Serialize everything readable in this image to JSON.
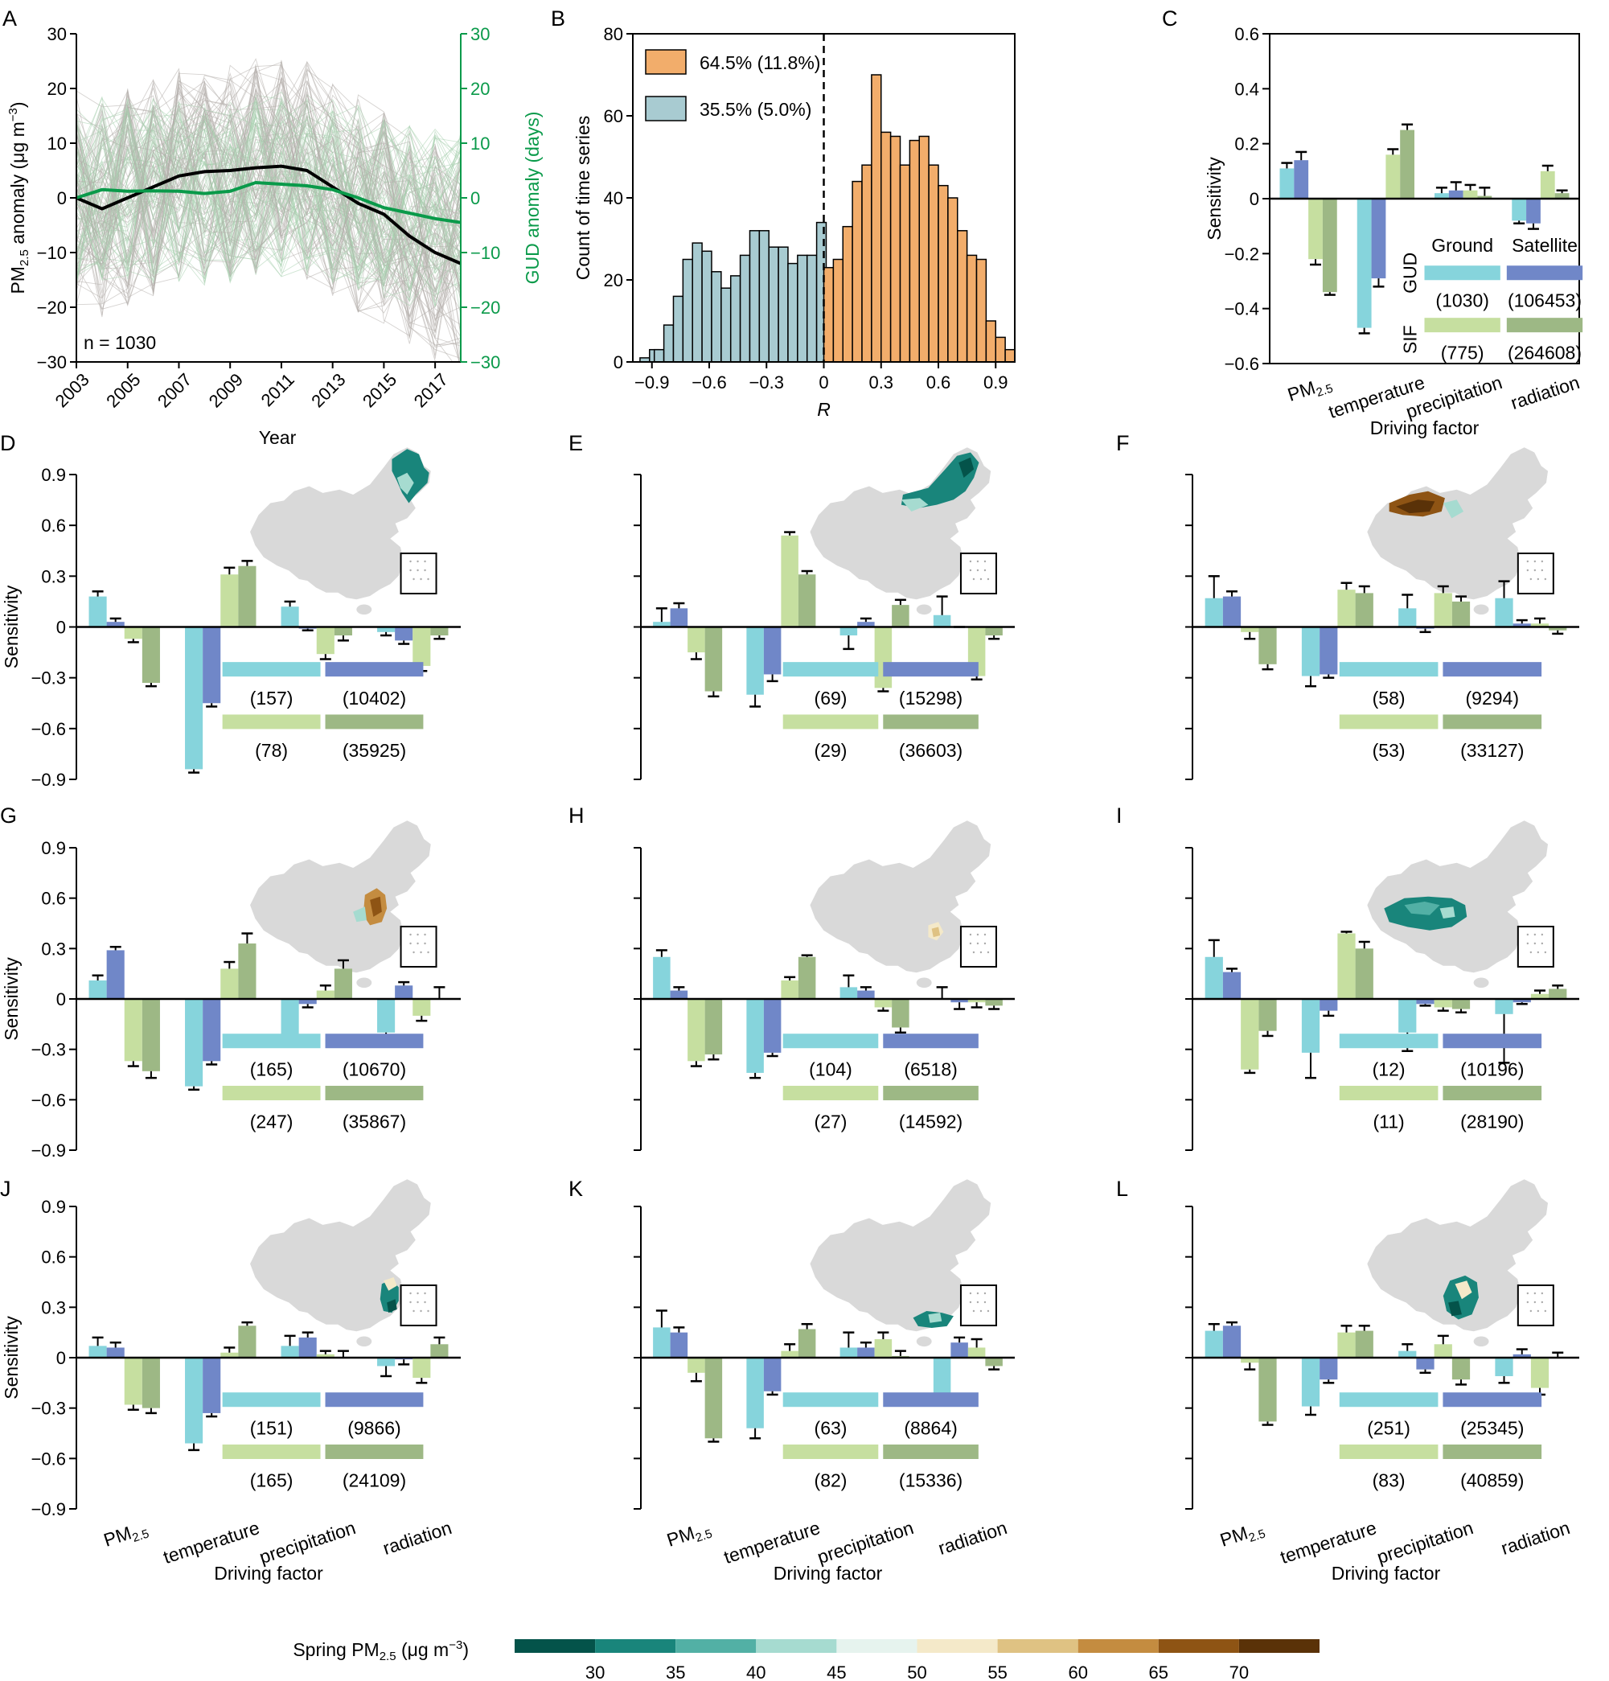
{
  "colors": {
    "ground_gud": "#86d4dc",
    "satellite_gud": "#7087c8",
    "ground_sif": "#c6dfa0",
    "satellite_sif": "#9db885",
    "orange": "#f2ad6b",
    "blue": "#a8cbd1",
    "black_line": "#000000",
    "green_line": "#0a9a4a",
    "thin_grey": "#b3ada9",
    "thin_green": "#a8d0ae",
    "map_grey": "#d9d9d9",
    "colorbar": [
      "#04534a",
      "#19857b",
      "#52b0a5",
      "#a6dbd0",
      "#e6f3ee",
      "#f4e9c9",
      "#dfc283",
      "#c48c40",
      "#8e5414",
      "#5a3208"
    ]
  },
  "chart_data": [
    {
      "panel": "A",
      "type": "line",
      "x": [
        2003,
        2004,
        2005,
        2006,
        2007,
        2008,
        2009,
        2010,
        2011,
        2012,
        2013,
        2014,
        2015,
        2016,
        2017,
        2018
      ],
      "xticks": [
        "2003",
        "2005",
        "2007",
        "2009",
        "2011",
        "2013",
        "2015",
        "2017"
      ],
      "series": [
        {
          "name": "PM2.5 mean",
          "axis": "left",
          "values": [
            0,
            -2,
            0,
            2,
            4,
            4.8,
            5,
            5.5,
            5.8,
            5,
            2,
            -1,
            -3,
            -7,
            -10,
            -12
          ]
        },
        {
          "name": "GUD mean",
          "axis": "right",
          "values": [
            0,
            1.5,
            1.2,
            1.3,
            1.2,
            0.8,
            1.2,
            2.8,
            2.5,
            2.2,
            1.5,
            0,
            -1.8,
            -2.8,
            -3.8,
            -4.5
          ]
        }
      ],
      "ylim": [
        -30,
        30
      ],
      "yticks": [
        "30",
        "20",
        "10",
        "0",
        "−10",
        "−20",
        "−30"
      ],
      "ylabel_main": "PM",
      "ylabel_sub": "2.5",
      "ylabel_rest": " anomaly (μg m",
      "ylabel_sup": "−3",
      "ylabel_close": ")",
      "y2lim": [
        -30,
        30
      ],
      "y2ticks": [
        "30",
        "20",
        "10",
        "0",
        "−10",
        "−20",
        "−30"
      ],
      "y2label": "GUD anomaly (days)",
      "xlabel": "Year",
      "annotation": "n = 1030"
    },
    {
      "panel": "B",
      "type": "bar",
      "bin_centers": [
        -0.9375,
        -0.8875,
        -0.8625,
        -0.8125,
        -0.7625,
        -0.7125,
        -0.6625,
        -0.6125,
        -0.5625,
        -0.5125,
        -0.4625,
        -0.4125,
        -0.3625,
        -0.3125,
        -0.2625,
        -0.2125,
        -0.1625,
        -0.1125,
        -0.0625,
        -0.0125
      ],
      "bin_width": 0.05,
      "negative_counts": [
        1,
        3,
        3,
        9,
        16,
        25,
        29,
        27,
        22,
        18,
        21,
        26,
        32,
        32,
        28,
        28,
        24,
        26,
        26,
        34
      ],
      "positive_bin_centers": [
        0.025,
        0.075,
        0.125,
        0.175,
        0.225,
        0.275,
        0.325,
        0.375,
        0.425,
        0.475,
        0.525,
        0.575,
        0.625,
        0.675,
        0.725,
        0.775,
        0.825,
        0.875,
        0.925,
        0.975
      ],
      "positive_counts": [
        23,
        25,
        33,
        44,
        48,
        70,
        56,
        55,
        48,
        54,
        55,
        48,
        43,
        40,
        32,
        26,
        25,
        10,
        6,
        3
      ],
      "xticks": [
        "−0.9",
        "−0.6",
        "−0.3",
        "0",
        "0.3",
        "0.6",
        "0.9"
      ],
      "xlim": [
        -1.0,
        1.0
      ],
      "ylim": [
        0,
        80
      ],
      "yticks": [
        "0",
        "20",
        "40",
        "60",
        "80"
      ],
      "xlabel": "R",
      "ylabel": "Count of time series",
      "legend": [
        "64.5% (11.8%)",
        "35.5% (5.0%)"
      ]
    },
    {
      "panel": "C",
      "type": "bar",
      "categories": [
        "PM2.5",
        "temperature",
        "precipitation",
        "radiation"
      ],
      "series_names": [
        "Ground GUD",
        "Satellite GUD",
        "Ground SIF",
        "Satellite SIF"
      ],
      "values": [
        [
          0.11,
          0.14,
          -0.22,
          -0.34
        ],
        [
          -0.47,
          -0.29,
          0.16,
          0.25
        ],
        [
          0.02,
          0.03,
          0.03,
          0.01
        ],
        [
          -0.08,
          -0.09,
          0.1,
          0.02
        ]
      ],
      "errors": [
        [
          0.02,
          0.03,
          0.02,
          0.01
        ],
        [
          0.02,
          0.03,
          0.02,
          0.02
        ],
        [
          0.02,
          0.03,
          0.02,
          0.03
        ],
        [
          0.01,
          0.02,
          0.02,
          0.01
        ]
      ],
      "ylim": [
        -0.6,
        0.6
      ],
      "yticks": [
        "0.6",
        "0.4",
        "0.2",
        "0",
        "−0.2",
        "−0.4",
        "−0.6"
      ],
      "ylabel": "Sensitivity",
      "xlabel": "Driving factor",
      "legend_headers": [
        "Ground",
        "Satellite"
      ],
      "legend_rows": [
        "GUD",
        "SIF"
      ],
      "counts": [
        "(1030)",
        "(106453)",
        "(775)",
        "(264608)"
      ]
    },
    {
      "panel": "D",
      "type": "bar",
      "values": [
        [
          0.18,
          0.03,
          -0.07,
          -0.33
        ],
        [
          -0.84,
          -0.45,
          0.31,
          0.36
        ],
        [
          0.12,
          -0.01,
          -0.16,
          -0.05
        ],
        [
          -0.03,
          -0.08,
          -0.23,
          -0.05
        ]
      ],
      "errors": [
        [
          0.03,
          0.02,
          0.02,
          0.02
        ],
        [
          0.02,
          0.02,
          0.04,
          0.03
        ],
        [
          0.03,
          0.01,
          0.03,
          0.03
        ],
        [
          0.02,
          0.02,
          0.03,
          0.02
        ]
      ],
      "ylim": [
        -0.9,
        0.9
      ],
      "yticks": [
        "0.9",
        "0.6",
        "0.3",
        "0",
        "−0.3",
        "−0.6",
        "−0.9"
      ],
      "ylabel": "Sensitivity",
      "counts": [
        "(157)",
        "(10402)",
        "(78)",
        "(35925)"
      ],
      "region": "northeast"
    },
    {
      "panel": "E",
      "type": "bar",
      "values": [
        [
          0.03,
          0.11,
          -0.15,
          -0.38
        ],
        [
          -0.4,
          -0.28,
          0.54,
          0.31
        ],
        [
          -0.05,
          0.03,
          -0.36,
          0.13
        ],
        [
          0.07,
          0.0,
          -0.29,
          -0.05
        ]
      ],
      "errors": [
        [
          0.08,
          0.03,
          0.04,
          0.03
        ],
        [
          0.07,
          0.04,
          0.02,
          0.02
        ],
        [
          0.08,
          0.02,
          0.02,
          0.03
        ],
        [
          0.11,
          0.0,
          0.02,
          0.02
        ]
      ],
      "ylim": [
        -0.9,
        0.9
      ],
      "yticks": [
        "0.9",
        "0.6",
        "0.3",
        "0",
        "−0.3",
        "−0.6",
        "−0.9"
      ],
      "counts": [
        "(69)",
        "(15298)",
        "(29)",
        "(36603)"
      ],
      "region": "north"
    },
    {
      "panel": "F",
      "type": "bar",
      "values": [
        [
          0.17,
          0.18,
          -0.03,
          -0.22
        ],
        [
          -0.29,
          -0.28,
          0.22,
          0.2
        ],
        [
          0.11,
          -0.01,
          0.2,
          0.15
        ],
        [
          0.17,
          0.02,
          0.02,
          -0.02
        ]
      ],
      "errors": [
        [
          0.13,
          0.03,
          0.04,
          0.03
        ],
        [
          0.06,
          0.02,
          0.04,
          0.04
        ],
        [
          0.08,
          0.02,
          0.04,
          0.03
        ],
        [
          0.1,
          0.02,
          0.03,
          0.02
        ]
      ],
      "ylim": [
        -0.9,
        0.9
      ],
      "yticks": [
        "0.9",
        "0.6",
        "0.3",
        "0",
        "−0.3",
        "−0.6",
        "−0.9"
      ],
      "counts": [
        "(58)",
        "(9294)",
        "(53)",
        "(33127)"
      ],
      "region": "northwest"
    },
    {
      "panel": "G",
      "type": "bar",
      "values": [
        [
          0.11,
          0.29,
          -0.37,
          -0.43
        ],
        [
          -0.52,
          -0.37,
          0.18,
          0.33
        ],
        [
          -0.22,
          -0.03,
          0.05,
          0.18
        ],
        [
          -0.2,
          0.08,
          -0.1,
          0.0
        ]
      ],
      "errors": [
        [
          0.03,
          0.02,
          0.03,
          0.04
        ],
        [
          0.02,
          0.02,
          0.04,
          0.06
        ],
        [
          0.03,
          0.02,
          0.03,
          0.05
        ],
        [
          0.03,
          0.02,
          0.03,
          0.07
        ]
      ],
      "ylim": [
        -0.9,
        0.9
      ],
      "yticks": [
        "0.9",
        "0.6",
        "0.3",
        "0",
        "−0.3",
        "−0.6",
        "−0.9"
      ],
      "ylabel": "Sensitivity",
      "counts": [
        "(165)",
        "(10670)",
        "(247)",
        "(35867)"
      ],
      "region": "northchinaplain"
    },
    {
      "panel": "H",
      "type": "bar",
      "values": [
        [
          0.25,
          0.05,
          -0.37,
          -0.33
        ],
        [
          -0.44,
          -0.32,
          0.11,
          0.25
        ],
        [
          0.07,
          0.05,
          -0.05,
          -0.17
        ],
        [
          0.0,
          -0.02,
          -0.02,
          -0.04
        ]
      ],
      "errors": [
        [
          0.04,
          0.02,
          0.03,
          0.03
        ],
        [
          0.03,
          0.02,
          0.02,
          0.01
        ],
        [
          0.07,
          0.02,
          0.02,
          0.03
        ],
        [
          0.07,
          0.04,
          0.03,
          0.02
        ]
      ],
      "ylim": [
        -0.9,
        0.9
      ],
      "yticks": [
        "0.9",
        "0.6",
        "0.3",
        "0",
        "−0.3",
        "−0.6",
        "−0.9"
      ],
      "counts": [
        "(104)",
        "(6518)",
        "(27)",
        "(14592)"
      ],
      "region": "central"
    },
    {
      "panel": "I",
      "type": "bar",
      "values": [
        [
          0.25,
          0.16,
          -0.42,
          -0.19
        ],
        [
          -0.32,
          -0.07,
          0.39,
          0.3
        ],
        [
          -0.2,
          -0.03,
          -0.05,
          -0.06
        ],
        [
          -0.09,
          -0.02,
          0.03,
          0.06
        ]
      ],
      "errors": [
        [
          0.1,
          0.02,
          0.02,
          0.03
        ],
        [
          0.15,
          0.03,
          0.01,
          0.04
        ],
        [
          0.11,
          0.01,
          0.02,
          0.02
        ],
        [
          0.29,
          0.01,
          0.02,
          0.02
        ]
      ],
      "ylim": [
        -0.9,
        0.9
      ],
      "yticks": [
        "0.9",
        "0.6",
        "0.3",
        "0",
        "−0.3",
        "−0.6",
        "−0.9"
      ],
      "counts": [
        "(12)",
        "(10196)",
        "(11)",
        "(28190)"
      ],
      "region": "tibet"
    },
    {
      "panel": "J",
      "type": "bar",
      "values": [
        [
          0.07,
          0.06,
          -0.28,
          -0.3
        ],
        [
          -0.51,
          -0.33,
          0.03,
          0.19
        ],
        [
          0.07,
          0.12,
          0.02,
          0.0
        ],
        [
          -0.05,
          -0.01,
          -0.12,
          0.08
        ]
      ],
      "errors": [
        [
          0.05,
          0.03,
          0.03,
          0.03
        ],
        [
          0.04,
          0.02,
          0.03,
          0.02
        ],
        [
          0.06,
          0.03,
          0.02,
          0.04
        ],
        [
          0.06,
          0.03,
          0.03,
          0.04
        ]
      ],
      "ylim": [
        -0.9,
        0.9
      ],
      "yticks": [
        "0.9",
        "0.6",
        "0.3",
        "0",
        "−0.3",
        "−0.6",
        "−0.9"
      ],
      "ylabel": "Sensitivity",
      "xlabel": "Driving factor",
      "counts": [
        "(151)",
        "(9866)",
        "(165)",
        "(24109)"
      ],
      "region": "east"
    },
    {
      "panel": "K",
      "type": "bar",
      "values": [
        [
          0.18,
          0.15,
          -0.09,
          -0.48
        ],
        [
          -0.42,
          -0.2,
          0.04,
          0.17
        ],
        [
          0.06,
          0.06,
          0.11,
          0.01
        ],
        [
          -0.23,
          0.09,
          0.06,
          -0.05
        ]
      ],
      "errors": [
        [
          0.1,
          0.03,
          0.05,
          0.02
        ],
        [
          0.06,
          0.02,
          0.04,
          0.03
        ],
        [
          0.09,
          0.03,
          0.04,
          0.03
        ],
        [
          0.05,
          0.03,
          0.05,
          0.02
        ]
      ],
      "ylim": [
        -0.9,
        0.9
      ],
      "yticks": [
        "0.9",
        "0.6",
        "0.3",
        "0",
        "−0.3",
        "−0.6",
        "−0.9"
      ],
      "xlabel": "Driving factor",
      "counts": [
        "(63)",
        "(8864)",
        "(82)",
        "(15336)"
      ],
      "region": "south"
    },
    {
      "panel": "L",
      "type": "bar",
      "values": [
        [
          0.16,
          0.19,
          -0.03,
          -0.38
        ],
        [
          -0.29,
          -0.13,
          0.15,
          0.16
        ],
        [
          0.04,
          -0.07,
          0.08,
          -0.13
        ],
        [
          -0.11,
          0.02,
          -0.18,
          0.0
        ]
      ],
      "errors": [
        [
          0.04,
          0.02,
          0.04,
          0.02
        ],
        [
          0.05,
          0.02,
          0.04,
          0.03
        ],
        [
          0.04,
          0.02,
          0.05,
          0.03
        ],
        [
          0.04,
          0.03,
          0.04,
          0.03
        ]
      ],
      "ylim": [
        -0.9,
        0.9
      ],
      "yticks": [
        "0.9",
        "0.6",
        "0.3",
        "0",
        "−0.3",
        "−0.6",
        "−0.9"
      ],
      "xlabel": "Driving factor",
      "counts": [
        "(251)",
        "(25345)",
        "(83)",
        "(40859)"
      ],
      "region": "southwest"
    }
  ],
  "colorbar": {
    "label_main": "Spring PM",
    "label_sub": "2.5",
    "label_rest": " (μg m",
    "label_sup": "−3",
    "label_close": ")",
    "ticks": [
      "30",
      "35",
      "40",
      "45",
      "50",
      "55",
      "60",
      "65",
      "70"
    ]
  },
  "factor_labels": {
    "pm_main": "PM",
    "pm_sub": "2.5",
    "others": [
      "temperature",
      "precipitation",
      "radiation"
    ]
  },
  "panel_letters": [
    "A",
    "B",
    "C",
    "D",
    "E",
    "F",
    "G",
    "H",
    "I",
    "J",
    "K",
    "L"
  ]
}
